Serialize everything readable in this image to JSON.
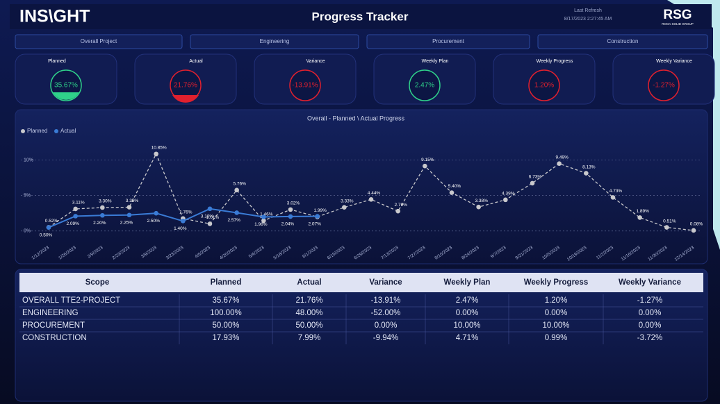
{
  "header": {
    "logo": "INS\\GHT",
    "title": "Progress Tracker",
    "refresh_label": "Last Refresh",
    "refresh_time": "8/17/2023 2:27:45 AM",
    "brand": "RSG",
    "brand_sub": "ROCK SOLID GROUP"
  },
  "tabs": [
    "Overall Project",
    "Engineering",
    "Procurement",
    "Construction"
  ],
  "kpis": [
    {
      "label": "Planned",
      "value": "35.67%"
    },
    {
      "label": "Actual",
      "value": "21.76%"
    },
    {
      "label": "Variance",
      "value": "-13.91%"
    },
    {
      "label": "Weekly Plan",
      "value": "2.47%"
    },
    {
      "label": "Weekly Progress",
      "value": "1.20%"
    },
    {
      "label": "Weekly Variance",
      "value": "-1.27%"
    }
  ],
  "chart_data": {
    "type": "line",
    "title": "Overall - Planned \\ Actual Progress",
    "x": [
      "1/12/2023",
      "1/26/2023",
      "2/9/2023",
      "2/23/2023",
      "3/9/2023",
      "3/23/2023",
      "4/6/2023",
      "4/20/2023",
      "5/4/2023",
      "5/18/2023",
      "6/1/2023",
      "6/15/2023",
      "6/29/2023",
      "7/13/2023",
      "7/27/2023",
      "8/10/2023",
      "8/24/2023",
      "9/7/2023",
      "9/21/2023",
      "10/5/2023",
      "10/19/2023",
      "11/2/2023",
      "11/16/2023",
      "11/30/2023",
      "12/14/2023"
    ],
    "series": [
      {
        "name": "Planned",
        "color": "#c8c8cc",
        "dashed": true,
        "values": [
          0.52,
          3.11,
          3.3,
          3.35,
          10.85,
          1.76,
          1.01,
          5.76,
          1.46,
          3.02,
          1.99,
          3.33,
          4.44,
          2.79,
          9.15,
          5.4,
          3.38,
          4.39,
          6.73,
          9.49,
          8.13,
          4.73,
          1.89,
          0.51,
          0.08
        ],
        "value_labels": [
          "0.52%",
          "3.11%",
          "3.30%",
          "3.35%",
          "10.85%",
          "1.76%",
          "1.01%",
          "5.76%",
          "1.46%",
          "3.02%",
          "1.99%",
          "3.33%",
          "4.44%",
          "2.79%",
          "9.15%",
          "5.40%",
          "3.38%",
          "4.39%",
          "6.73%",
          "9.49%",
          "8.13%",
          "4.73%",
          "1.89%",
          "0.51%",
          "0.08%"
        ]
      },
      {
        "name": "Actual",
        "color": "#3a7bd5",
        "dashed": false,
        "values": [
          0.5,
          2.09,
          2.2,
          2.25,
          2.5,
          1.4,
          3.13,
          2.57,
          1.98,
          2.04,
          2.07,
          null,
          null,
          null,
          null,
          null,
          null,
          null,
          null,
          null,
          null,
          null,
          null,
          null,
          null
        ],
        "value_labels": [
          "0.50%",
          "2.09%",
          "2.20%",
          "2.25%",
          "2.50%",
          "1.40%",
          "3.13%",
          "2.57%",
          "1.98%",
          "2.04%",
          "2.07%",
          null,
          null,
          null,
          null,
          null,
          null,
          null,
          null,
          null,
          null,
          null,
          null,
          null,
          null
        ]
      }
    ],
    "ylim": [
      -1,
      12
    ],
    "yticks": [
      {
        "value": 0,
        "label": "0%"
      },
      {
        "value": 5,
        "label": "5%"
      },
      {
        "value": 10,
        "label": "10%"
      }
    ],
    "grid": true,
    "legend": "top-left"
  },
  "table": {
    "columns": [
      "Scope",
      "Planned",
      "Actual",
      "Variance",
      "Weekly Plan",
      "Weekly Progress",
      "Weekly Variance"
    ],
    "rows": [
      [
        "OVERALL TTE2-PROJECT",
        "35.67%",
        "21.76%",
        "-13.91%",
        "2.47%",
        "1.20%",
        "-1.27%"
      ],
      [
        "ENGINEERING",
        "100.00%",
        "48.00%",
        "-52.00%",
        "0.00%",
        "0.00%",
        "0.00%"
      ],
      [
        "PROCUREMENT",
        "50.00%",
        "50.00%",
        "0.00%",
        "10.00%",
        "10.00%",
        "0.00%"
      ],
      [
        "CONSTRUCTION",
        "17.93%",
        "7.99%",
        "-9.94%",
        "4.71%",
        "0.99%",
        "-3.72%"
      ]
    ]
  }
}
